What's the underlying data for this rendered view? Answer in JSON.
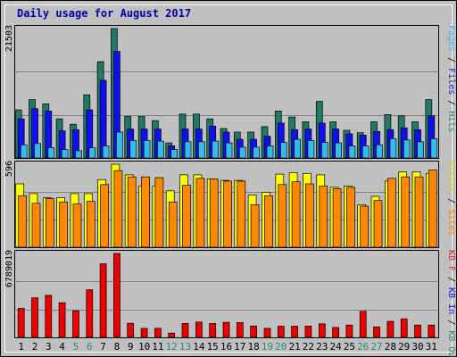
{
  "chart_data": [
    {
      "type": "bar",
      "title": "Daily usage for August 2017",
      "categories": [
        "1",
        "2",
        "3",
        "4",
        "5",
        "6",
        "7",
        "8",
        "9",
        "10",
        "11",
        "12",
        "13",
        "14",
        "15",
        "16",
        "17",
        "18",
        "19",
        "20",
        "21",
        "22",
        "23",
        "24",
        "25",
        "26",
        "27",
        "28",
        "29",
        "30",
        "31"
      ],
      "weekend_days": [
        "5",
        "6",
        "12",
        "13",
        "19",
        "20",
        "26",
        "27"
      ],
      "ylim": [
        0,
        21503
      ],
      "ymax_label": "21503",
      "ylabel_parts": [
        {
          "text": "Pages",
          "color": "#33bbee"
        },
        {
          "text": " / ",
          "color": "#000000"
        },
        {
          "text": "Files",
          "color": "#2222dd"
        },
        {
          "text": " / ",
          "color": "#000000"
        },
        {
          "text": "Hits",
          "color": "#2e8b6e"
        }
      ],
      "series": [
        {
          "name": "Hits",
          "color": "#227766",
          "values": [
            8000,
            9700,
            9000,
            6500,
            5600,
            10500,
            16000,
            21503,
            6900,
            6900,
            6200,
            2500,
            7300,
            7300,
            6500,
            4900,
            4300,
            4300,
            5200,
            7800,
            6800,
            6000,
            9400,
            6000,
            4600,
            4200,
            6000,
            7200,
            7000,
            6000,
            9700
          ]
        },
        {
          "name": "Files",
          "color": "#1010ee",
          "values": [
            6500,
            8200,
            7800,
            4500,
            4700,
            8000,
            12900,
            17700,
            4800,
            4800,
            4800,
            2000,
            4800,
            4800,
            5300,
            4300,
            3100,
            3100,
            3600,
            5800,
            4700,
            4800,
            5800,
            4800,
            4000,
            3800,
            4400,
            4700,
            5000,
            4700,
            7000
          ]
        },
        {
          "name": "Pages",
          "color": "#33bbee",
          "values": [
            2200,
            2400,
            1700,
            1400,
            1200,
            1700,
            2000,
            4300,
            2900,
            2900,
            2800,
            1400,
            2700,
            2700,
            2800,
            2500,
            1800,
            1800,
            2000,
            2600,
            3100,
            2900,
            2600,
            2500,
            2000,
            2000,
            2200,
            3200,
            3000,
            2700,
            3200
          ]
        }
      ]
    },
    {
      "type": "bar",
      "categories": [
        "1",
        "2",
        "3",
        "4",
        "5",
        "6",
        "7",
        "8",
        "9",
        "10",
        "11",
        "12",
        "13",
        "14",
        "15",
        "16",
        "17",
        "18",
        "19",
        "20",
        "21",
        "22",
        "23",
        "24",
        "25",
        "26",
        "27",
        "28",
        "29",
        "30",
        "31"
      ],
      "ylim": [
        0,
        596
      ],
      "ymax_label": "596",
      "ylabel_parts": [
        {
          "text": "Visits",
          "color": "#e6c200"
        },
        {
          "text": " / ",
          "color": "#000000"
        },
        {
          "text": "Sites",
          "color": "#ff8000"
        }
      ],
      "series": [
        {
          "name": "Visits",
          "color": "#ffff00",
          "values": [
            455,
            385,
            355,
            355,
            385,
            385,
            485,
            596,
            520,
            440,
            440,
            405,
            520,
            520,
            490,
            480,
            480,
            375,
            395,
            525,
            535,
            530,
            520,
            430,
            440,
            305,
            365,
            475,
            540,
            540,
            530
          ]
        },
        {
          "name": "Sites",
          "color": "#ff8800",
          "values": [
            370,
            315,
            350,
            325,
            310,
            330,
            450,
            550,
            505,
            505,
            500,
            325,
            445,
            495,
            490,
            475,
            475,
            305,
            370,
            450,
            470,
            455,
            440,
            420,
            430,
            295,
            335,
            495,
            505,
            505,
            555
          ]
        }
      ]
    },
    {
      "type": "bar",
      "categories": [
        "1",
        "2",
        "3",
        "4",
        "5",
        "6",
        "7",
        "8",
        "9",
        "10",
        "11",
        "12",
        "13",
        "14",
        "15",
        "16",
        "17",
        "18",
        "19",
        "20",
        "21",
        "22",
        "23",
        "24",
        "25",
        "26",
        "27",
        "28",
        "29",
        "30",
        "31"
      ],
      "ylim": [
        0,
        6789019
      ],
      "ymax_label": "6789019",
      "ylabel_parts": [
        {
          "text": "KB F",
          "color": "#dd2222"
        },
        {
          "text": " / ",
          "color": "#000000"
        },
        {
          "text": "KB In",
          "color": "#1010ee"
        },
        {
          "text": " / ",
          "color": "#000000"
        },
        {
          "text": "KB Out",
          "color": "#2e8b6e"
        }
      ],
      "series": [
        {
          "name": "KB F",
          "color": "#ee0000",
          "values": [
            2350000,
            3200000,
            3400000,
            2800000,
            2150000,
            3850000,
            5950000,
            6789019,
            1140000,
            730000,
            730000,
            350000,
            1130000,
            1240000,
            1130000,
            1220000,
            1200000,
            920000,
            730000,
            900000,
            900000,
            920000,
            1100000,
            800000,
            1000000,
            2100000,
            850000,
            1300000,
            1500000,
            1000000,
            1000000
          ]
        }
      ]
    }
  ]
}
